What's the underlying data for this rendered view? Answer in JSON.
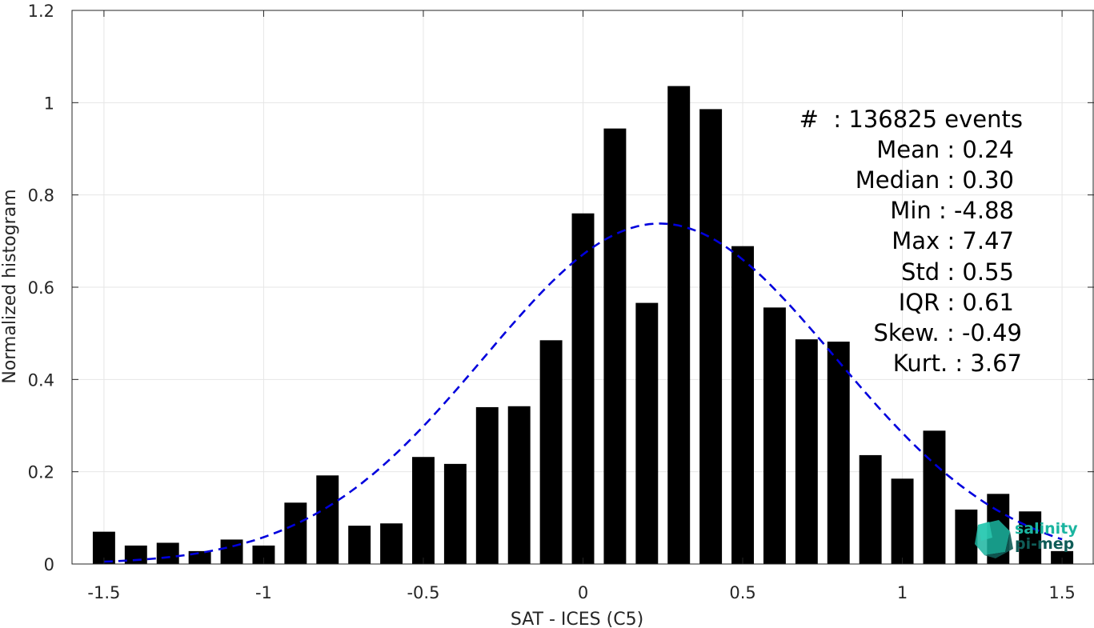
{
  "chart_data": {
    "type": "bar",
    "xlabel": "SAT - ICES (C5)",
    "ylabel": "Normalized histogram",
    "xlim": [
      -1.6,
      1.6
    ],
    "ylim": [
      0,
      1.2
    ],
    "grid": true,
    "x_ticks": [
      "-1.5",
      "-1",
      "-0.5",
      "0",
      "0.5",
      "1",
      "1.5"
    ],
    "y_ticks": [
      "0",
      "0.2",
      "0.4",
      "0.6",
      "0.8",
      "1",
      "1.2"
    ],
    "bar_color": "#000000",
    "x": [
      -1.5,
      -1.4,
      -1.3,
      -1.2,
      -1.1,
      -1.0,
      -0.9,
      -0.8,
      -0.7,
      -0.6,
      -0.5,
      -0.4,
      -0.3,
      -0.2,
      -0.1,
      0.0,
      0.1,
      0.2,
      0.3,
      0.4,
      0.5,
      0.6,
      0.7,
      0.8,
      0.9,
      1.0,
      1.1,
      1.2,
      1.3,
      1.4,
      1.5
    ],
    "values": [
      0.07,
      0.04,
      0.046,
      0.028,
      0.053,
      0.04,
      0.133,
      0.192,
      0.083,
      0.088,
      0.232,
      0.217,
      0.34,
      0.342,
      0.485,
      0.76,
      0.944,
      0.566,
      1.036,
      0.986,
      0.689,
      0.556,
      0.487,
      0.482,
      0.236,
      0.185,
      0.289,
      0.118,
      0.152,
      0.114,
      0.028
    ],
    "fit_curve": {
      "style": "dashed",
      "color": "#0000dd",
      "mean": 0.24,
      "std": 0.55,
      "peak": 0.738,
      "x_range": [
        -1.5,
        1.5
      ]
    },
    "annotations": [
      "#  : 136825 events",
      "Mean : 0.24",
      "Median : 0.30",
      "Min : -4.88",
      "Max : 7.47",
      "Std : 0.55",
      "IQR : 0.61",
      "Skew. : -0.49",
      "Kurt. : 3.67"
    ]
  },
  "logo": {
    "line1": "salinity",
    "line2": "pi-mep",
    "color_teal": "#1bb5a0",
    "color_dark": "#0f5c57"
  }
}
